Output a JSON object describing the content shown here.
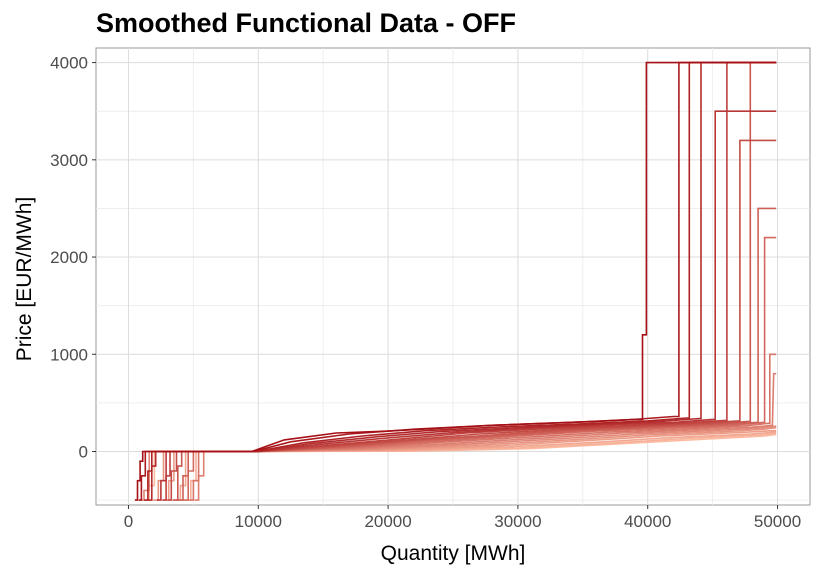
{
  "chart_data": {
    "type": "line",
    "title": "Smoothed Functional Data - OFF",
    "xlabel": "Quantity [MWh]",
    "ylabel": "Price [EUR/MWh]",
    "xlim": [
      -2500,
      52500
    ],
    "ylim": [
      -550,
      4150
    ],
    "x_ticks": [
      0,
      10000,
      20000,
      30000,
      40000,
      50000
    ],
    "x_tick_labels": [
      "0",
      "10000",
      "20000",
      "30000",
      "40000",
      "50000"
    ],
    "y_ticks": [
      0,
      1000,
      2000,
      3000,
      4000
    ],
    "y_tick_labels": [
      "0",
      "1000",
      "2000",
      "3000",
      "4000"
    ],
    "grid": true,
    "legend": "none",
    "price_floor": -500,
    "price_cap": 4000,
    "color_low": "#fcbba1",
    "color_high": "#a50f15",
    "series": [
      {
        "values": [
          [
            500,
            -500
          ],
          [
            700,
            -300
          ],
          [
            900,
            -100
          ],
          [
            1100,
            0
          ],
          [
            9500,
            0
          ],
          [
            12000,
            120
          ],
          [
            16000,
            190
          ],
          [
            20000,
            210
          ],
          [
            24000,
            240
          ],
          [
            28000,
            270
          ],
          [
            32000,
            290
          ],
          [
            36000,
            310
          ],
          [
            39000,
            330
          ],
          [
            39600,
            1200
          ],
          [
            39900,
            4000
          ],
          [
            49900,
            4000
          ]
        ]
      },
      {
        "values": [
          [
            800,
            -500
          ],
          [
            1000,
            -250
          ],
          [
            1300,
            0
          ],
          [
            9600,
            0
          ],
          [
            12500,
            100
          ],
          [
            17000,
            180
          ],
          [
            22000,
            230
          ],
          [
            28000,
            270
          ],
          [
            34000,
            300
          ],
          [
            39000,
            330
          ],
          [
            42000,
            360
          ],
          [
            42400,
            4000
          ],
          [
            49900,
            4000
          ]
        ]
      },
      {
        "values": [
          [
            1200,
            -500
          ],
          [
            1500,
            -200
          ],
          [
            1800,
            0
          ],
          [
            9800,
            0
          ],
          [
            13500,
            90
          ],
          [
            18000,
            160
          ],
          [
            23000,
            215
          ],
          [
            29000,
            255
          ],
          [
            35000,
            285
          ],
          [
            40000,
            315
          ],
          [
            43000,
            345
          ],
          [
            43200,
            4000
          ],
          [
            49900,
            4000
          ]
        ]
      },
      {
        "values": [
          [
            1500,
            -500
          ],
          [
            1800,
            -150
          ],
          [
            2100,
            0
          ],
          [
            10000,
            0
          ],
          [
            14000,
            80
          ],
          [
            19000,
            150
          ],
          [
            24000,
            205
          ],
          [
            30000,
            245
          ],
          [
            36000,
            280
          ],
          [
            41000,
            310
          ],
          [
            44000,
            340
          ],
          [
            44100,
            4000
          ],
          [
            49900,
            4000
          ]
        ]
      },
      {
        "values": [
          [
            2200,
            -500
          ],
          [
            2500,
            -300
          ],
          [
            2900,
            0
          ],
          [
            10000,
            0
          ],
          [
            14500,
            70
          ],
          [
            20000,
            140
          ],
          [
            25000,
            195
          ],
          [
            31000,
            240
          ],
          [
            37000,
            275
          ],
          [
            42000,
            300
          ],
          [
            45000,
            330
          ],
          [
            45200,
            3500
          ],
          [
            49900,
            3500
          ]
        ]
      },
      {
        "values": [
          [
            2600,
            -500
          ],
          [
            2900,
            -250
          ],
          [
            3200,
            0
          ],
          [
            10000,
            0
          ],
          [
            15000,
            60
          ],
          [
            21000,
            130
          ],
          [
            26000,
            190
          ],
          [
            32000,
            235
          ],
          [
            38000,
            265
          ],
          [
            43000,
            295
          ],
          [
            46000,
            320
          ],
          [
            46100,
            4000
          ],
          [
            49900,
            4000
          ]
        ]
      },
      {
        "values": [
          [
            3000,
            -500
          ],
          [
            3300,
            -200
          ],
          [
            3700,
            0
          ],
          [
            10000,
            0
          ],
          [
            15500,
            55
          ],
          [
            21500,
            120
          ],
          [
            27000,
            180
          ],
          [
            33000,
            225
          ],
          [
            39000,
            260
          ],
          [
            44000,
            290
          ],
          [
            47000,
            315
          ],
          [
            47100,
            3200
          ],
          [
            49900,
            3200
          ]
        ]
      },
      {
        "values": [
          [
            3400,
            -500
          ],
          [
            3800,
            -150
          ],
          [
            4100,
            0
          ],
          [
            10000,
            0
          ],
          [
            16000,
            50
          ],
          [
            22000,
            115
          ],
          [
            28000,
            170
          ],
          [
            34000,
            220
          ],
          [
            40000,
            255
          ],
          [
            45000,
            285
          ],
          [
            47800,
            310
          ],
          [
            47900,
            4000
          ],
          [
            49900,
            4000
          ]
        ]
      },
      {
        "values": [
          [
            3800,
            -500
          ],
          [
            4200,
            -250
          ],
          [
            4600,
            0
          ],
          [
            10000,
            0
          ],
          [
            16500,
            45
          ],
          [
            22500,
            110
          ],
          [
            29000,
            165
          ],
          [
            35000,
            215
          ],
          [
            41000,
            250
          ],
          [
            46000,
            280
          ],
          [
            48400,
            300
          ],
          [
            48500,
            2500
          ],
          [
            49900,
            2500
          ]
        ]
      },
      {
        "values": [
          [
            4200,
            -500
          ],
          [
            4600,
            -200
          ],
          [
            5000,
            0
          ],
          [
            10000,
            0
          ],
          [
            17000,
            40
          ],
          [
            23000,
            100
          ],
          [
            30000,
            160
          ],
          [
            36000,
            210
          ],
          [
            42000,
            245
          ],
          [
            46500,
            270
          ],
          [
            48900,
            300
          ],
          [
            49000,
            2200
          ],
          [
            49900,
            2200
          ]
        ]
      },
      {
        "values": [
          [
            4700,
            -500
          ],
          [
            5000,
            -300
          ],
          [
            5400,
            0
          ],
          [
            10000,
            0
          ],
          [
            17500,
            35
          ],
          [
            24000,
            95
          ],
          [
            31000,
            150
          ],
          [
            37000,
            200
          ],
          [
            43000,
            235
          ],
          [
            47500,
            265
          ],
          [
            49300,
            290
          ],
          [
            49400,
            1000
          ],
          [
            49900,
            1000
          ]
        ]
      },
      {
        "values": [
          [
            5100,
            -500
          ],
          [
            5400,
            -250
          ],
          [
            5800,
            0
          ],
          [
            10000,
            0
          ],
          [
            18000,
            30
          ],
          [
            25000,
            85
          ],
          [
            32000,
            140
          ],
          [
            38000,
            190
          ],
          [
            44000,
            225
          ],
          [
            48000,
            250
          ],
          [
            49600,
            270
          ],
          [
            49700,
            800
          ],
          [
            49900,
            800
          ]
        ]
      },
      {
        "values": [
          [
            900,
            -500
          ],
          [
            1200,
            -400
          ],
          [
            1600,
            0
          ],
          [
            10000,
            0
          ],
          [
            18500,
            25
          ],
          [
            26000,
            75
          ],
          [
            33000,
            130
          ],
          [
            39000,
            180
          ],
          [
            45000,
            215
          ],
          [
            48500,
            240
          ],
          [
            49900,
            260
          ]
        ]
      },
      {
        "values": [
          [
            1900,
            -500
          ],
          [
            2300,
            -300
          ],
          [
            2700,
            0
          ],
          [
            10000,
            0
          ],
          [
            19000,
            20
          ],
          [
            27000,
            65
          ],
          [
            34000,
            120
          ],
          [
            40000,
            170
          ],
          [
            46000,
            205
          ],
          [
            49000,
            230
          ],
          [
            49900,
            245
          ]
        ]
      },
      {
        "values": [
          [
            2800,
            -500
          ],
          [
            3100,
            -300
          ],
          [
            3500,
            0
          ],
          [
            10000,
            0
          ],
          [
            20000,
            15
          ],
          [
            28000,
            55
          ],
          [
            35000,
            110
          ],
          [
            41000,
            160
          ],
          [
            47000,
            195
          ],
          [
            49900,
            215
          ]
        ]
      },
      {
        "values": [
          [
            3600,
            -500
          ],
          [
            4000,
            -350
          ],
          [
            4400,
            0
          ],
          [
            10000,
            0
          ],
          [
            21000,
            10
          ],
          [
            29000,
            45
          ],
          [
            36000,
            95
          ],
          [
            42000,
            145
          ],
          [
            48000,
            180
          ],
          [
            49900,
            200
          ]
        ]
      },
      {
        "values": [
          [
            4400,
            -500
          ],
          [
            4800,
            -300
          ],
          [
            5200,
            0
          ],
          [
            10000,
            0
          ],
          [
            22000,
            5
          ],
          [
            30000,
            35
          ],
          [
            37000,
            85
          ],
          [
            43000,
            135
          ],
          [
            48500,
            170
          ],
          [
            49900,
            185
          ]
        ]
      },
      {
        "values": [
          [
            1300,
            -500
          ],
          [
            1600,
            -350
          ],
          [
            2000,
            0
          ],
          [
            10000,
            0
          ],
          [
            23000,
            5
          ],
          [
            31000,
            30
          ],
          [
            38000,
            80
          ],
          [
            44000,
            125
          ],
          [
            49000,
            160
          ],
          [
            49900,
            175
          ]
        ]
      }
    ]
  }
}
